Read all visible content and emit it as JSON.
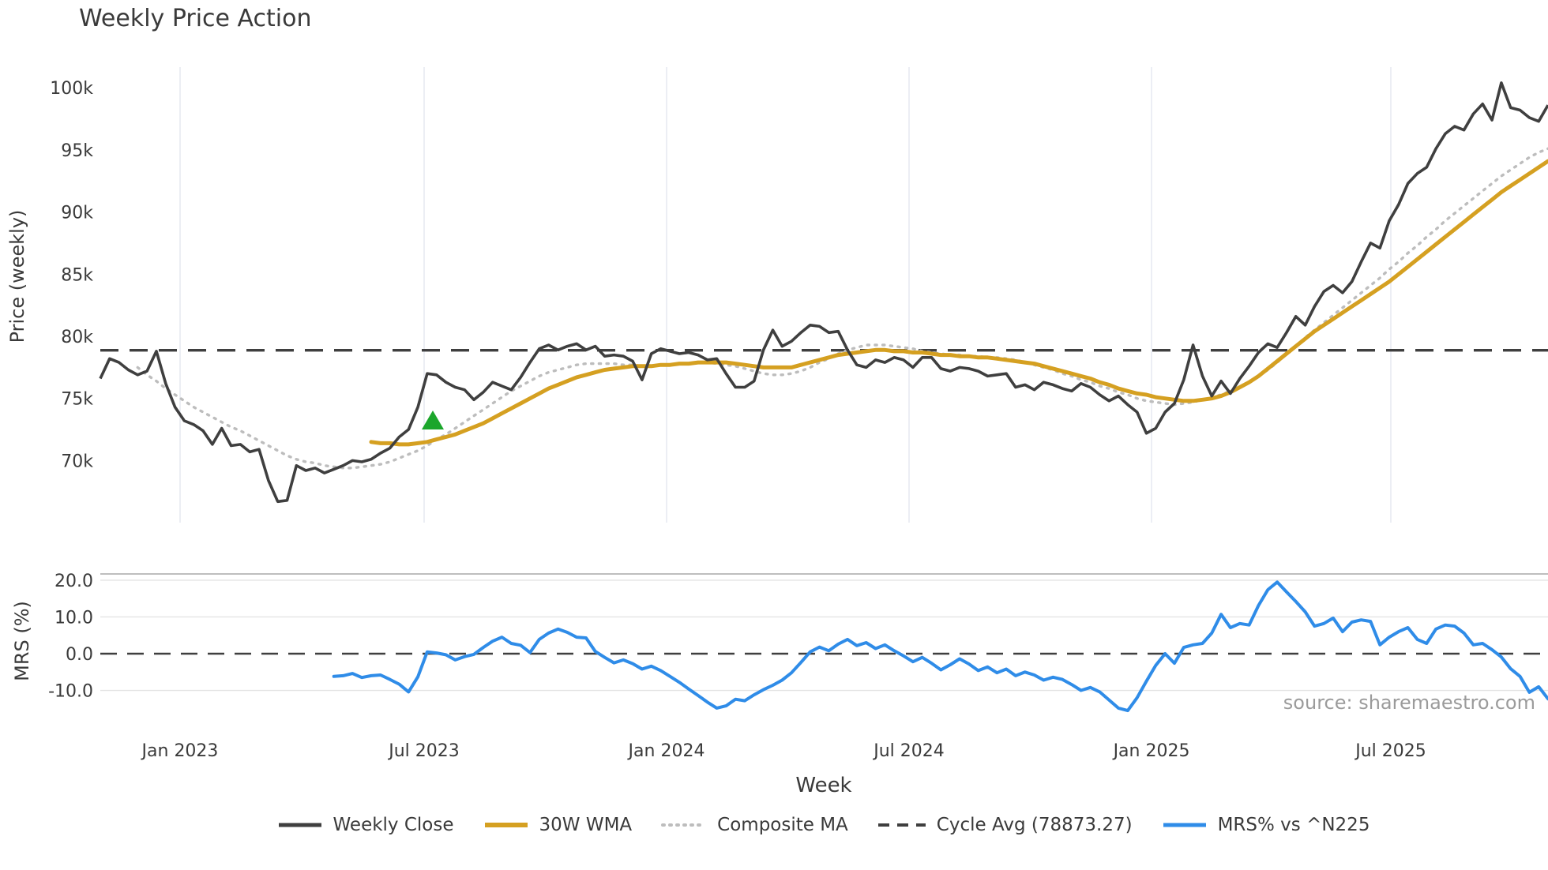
{
  "title": "Weekly Price Action",
  "source": "source: sharemaestro.com",
  "chart_data": {
    "type": "line",
    "title": "Weekly Price Action",
    "xlabel": "Week",
    "x_tick_labels": [
      "Jan 2023",
      "Jul 2023",
      "Jan 2024",
      "Jul 2024",
      "Jan 2025",
      "Jul 2025"
    ],
    "x_is_weekly": true,
    "weeks_total": 156,
    "panels": [
      {
        "name": "price",
        "ylabel": "Price (weekly)",
        "ytick_labels": [
          "100k",
          "95k",
          "90k",
          "85k",
          "80k",
          "75k",
          "70k"
        ],
        "ytick_values_k": [
          100,
          95,
          90,
          85,
          80,
          75,
          70
        ],
        "ylim_k": [
          65.5,
          102.5
        ],
        "grid": "vertical-date-lines"
      },
      {
        "name": "mrs",
        "ylabel": "MRS (%)",
        "ytick_labels": [
          "20.0",
          "10.0",
          "0.0",
          "-10.0"
        ],
        "ytick_values": [
          20,
          10,
          0,
          -10
        ],
        "ylim": [
          -20,
          21.7
        ],
        "grid": "horizontal-lines"
      }
    ],
    "series": [
      {
        "name": "Weekly Close",
        "panel": "price",
        "color": "#3f3f3f",
        "style": "solid",
        "unit": "k",
        "values": [
          76.6,
          78.2,
          77.9,
          77.3,
          76.9,
          77.2,
          78.8,
          76.2,
          74.3,
          73.2,
          72.9,
          72.4,
          71.3,
          72.6,
          71.2,
          71.3,
          70.7,
          70.9,
          68.4,
          66.7,
          66.8,
          69.6,
          69.2,
          69.4,
          69.0,
          69.3,
          69.6,
          70.0,
          69.9,
          70.1,
          70.6,
          71.0,
          71.9,
          72.5,
          74.3,
          77.0,
          76.9,
          76.3,
          75.9,
          75.7,
          74.9,
          75.5,
          76.3,
          76.0,
          75.7,
          76.7,
          77.9,
          79.0,
          79.3,
          78.9,
          79.2,
          79.4,
          78.9,
          79.2,
          78.4,
          78.5,
          78.4,
          78.0,
          76.5,
          78.6,
          79.0,
          78.8,
          78.6,
          78.7,
          78.5,
          78.1,
          78.2,
          77.0,
          75.9,
          75.9,
          76.4,
          78.9,
          80.5,
          79.2,
          79.6,
          80.3,
          80.9,
          80.8,
          80.3,
          80.4,
          78.9,
          77.7,
          77.5,
          78.1,
          77.9,
          78.3,
          78.1,
          77.5,
          78.3,
          78.3,
          77.4,
          77.2,
          77.5,
          77.4,
          77.2,
          76.8,
          76.9,
          77.0,
          75.9,
          76.1,
          75.7,
          76.3,
          76.1,
          75.8,
          75.6,
          76.2,
          75.9,
          75.3,
          74.8,
          75.2,
          74.5,
          73.9,
          72.2,
          72.6,
          73.9,
          74.6,
          76.5,
          79.3,
          76.8,
          75.2,
          76.4,
          75.4,
          76.6,
          77.6,
          78.7,
          79.4,
          79.1,
          80.3,
          81.6,
          80.9,
          82.4,
          83.6,
          84.1,
          83.5,
          84.4,
          86.0,
          87.5,
          87.1,
          89.3,
          90.6,
          92.3,
          93.1,
          93.6,
          95.1,
          96.3,
          96.9,
          96.6,
          97.9,
          98.7,
          97.4,
          100.4,
          98.4,
          98.2,
          97.6,
          97.3,
          98.6
        ]
      },
      {
        "name": "30W WMA",
        "panel": "price",
        "color": "#d5a021",
        "style": "solid",
        "unit": "k",
        "values": [
          null,
          null,
          null,
          null,
          null,
          null,
          null,
          null,
          null,
          null,
          null,
          null,
          null,
          null,
          null,
          null,
          null,
          null,
          null,
          null,
          null,
          null,
          null,
          null,
          null,
          null,
          null,
          null,
          null,
          71.5,
          71.4,
          71.4,
          71.3,
          71.3,
          71.4,
          71.5,
          71.7,
          71.9,
          72.1,
          72.4,
          72.7,
          73.0,
          73.4,
          73.8,
          74.2,
          74.6,
          75.0,
          75.4,
          75.8,
          76.1,
          76.4,
          76.7,
          76.9,
          77.1,
          77.3,
          77.4,
          77.5,
          77.6,
          77.6,
          77.6,
          77.7,
          77.7,
          77.8,
          77.8,
          77.9,
          77.9,
          77.9,
          77.9,
          77.8,
          77.7,
          77.6,
          77.5,
          77.5,
          77.5,
          77.5,
          77.7,
          77.9,
          78.1,
          78.3,
          78.5,
          78.6,
          78.7,
          78.8,
          78.9,
          78.9,
          78.8,
          78.8,
          78.7,
          78.7,
          78.6,
          78.5,
          78.5,
          78.4,
          78.4,
          78.3,
          78.3,
          78.2,
          78.1,
          78.0,
          77.9,
          77.8,
          77.6,
          77.4,
          77.2,
          77.0,
          76.8,
          76.6,
          76.3,
          76.1,
          75.8,
          75.6,
          75.4,
          75.3,
          75.1,
          75.0,
          74.9,
          74.8,
          74.8,
          74.9,
          75.0,
          75.2,
          75.5,
          75.9,
          76.3,
          76.8,
          77.4,
          78.0,
          78.6,
          79.2,
          79.8,
          80.4,
          80.9,
          81.4,
          81.9,
          82.4,
          82.9,
          83.4,
          83.9,
          84.4,
          85.0,
          85.6,
          86.2,
          86.8,
          87.4,
          88.0,
          88.6,
          89.2,
          89.8,
          90.4,
          91.0,
          91.6,
          92.1,
          92.6,
          93.1,
          93.6,
          94.1
        ]
      },
      {
        "name": "Composite MA",
        "panel": "price",
        "color": "#bdbdbd",
        "style": "dotted",
        "unit": "k",
        "values": [
          null,
          null,
          null,
          null,
          77.5,
          76.9,
          76.4,
          75.8,
          75.3,
          74.8,
          74.3,
          73.9,
          73.5,
          73.1,
          72.7,
          72.4,
          72.0,
          71.6,
          71.2,
          70.8,
          70.4,
          70.1,
          69.9,
          69.8,
          69.6,
          69.5,
          69.4,
          69.4,
          69.5,
          69.6,
          69.7,
          69.9,
          70.2,
          70.5,
          70.8,
          71.2,
          71.7,
          72.1,
          72.6,
          73.1,
          73.6,
          74.1,
          74.6,
          75.1,
          75.6,
          76.0,
          76.4,
          76.8,
          77.1,
          77.3,
          77.5,
          77.7,
          77.8,
          77.8,
          77.8,
          77.8,
          77.7,
          77.7,
          77.6,
          77.6,
          77.7,
          77.7,
          77.8,
          77.8,
          77.9,
          77.9,
          77.8,
          77.7,
          77.6,
          77.4,
          77.2,
          77.0,
          76.9,
          76.9,
          77.0,
          77.2,
          77.5,
          77.9,
          78.2,
          78.6,
          78.9,
          79.1,
          79.3,
          79.3,
          79.3,
          79.2,
          79.1,
          79.0,
          78.8,
          78.7,
          78.6,
          78.5,
          78.5,
          78.4,
          78.4,
          78.3,
          78.3,
          78.2,
          78.1,
          77.9,
          77.7,
          77.5,
          77.3,
          77.0,
          76.8,
          76.5,
          76.3,
          76.0,
          75.8,
          75.5,
          75.3,
          75.0,
          74.8,
          74.7,
          74.6,
          74.5,
          74.6,
          74.7,
          74.9,
          75.1,
          75.3,
          75.6,
          75.9,
          76.3,
          76.8,
          77.3,
          77.9,
          78.6,
          79.2,
          79.9,
          80.5,
          81.1,
          81.7,
          82.3,
          82.9,
          83.5,
          84.1,
          84.7,
          85.4,
          86.0,
          86.7,
          87.3,
          88.0,
          88.6,
          89.3,
          89.9,
          90.5,
          91.1,
          91.7,
          92.3,
          92.9,
          93.4,
          93.9,
          94.4,
          94.8,
          95.1
        ]
      },
      {
        "name": "Cycle Avg (78873.27)",
        "panel": "price",
        "color": "#3f3f3f",
        "style": "dashed",
        "unit": "k",
        "constant_value": 78873.27,
        "constant_value_k": 78.87327
      },
      {
        "name": "MRS% vs ^N225",
        "panel": "mrs",
        "color": "#2f8ce8",
        "style": "solid",
        "unit": "%",
        "values": [
          null,
          null,
          null,
          null,
          null,
          null,
          null,
          null,
          null,
          null,
          null,
          null,
          null,
          null,
          null,
          null,
          null,
          null,
          null,
          null,
          null,
          null,
          null,
          null,
          null,
          -6.2,
          -6.0,
          -5.4,
          -6.5,
          -6.0,
          -5.8,
          -7.0,
          -8.3,
          -10.4,
          -6.3,
          0.5,
          0.2,
          -0.3,
          -1.7,
          -0.8,
          -0.2,
          1.7,
          3.4,
          4.5,
          2.8,
          2.3,
          0.3,
          3.9,
          5.6,
          6.7,
          5.8,
          4.5,
          4.3,
          0.6,
          -1.0,
          -2.5,
          -1.7,
          -2.7,
          -4.2,
          -3.4,
          -4.6,
          -6.2,
          -7.8,
          -9.6,
          -11.4,
          -13.2,
          -14.8,
          -14.2,
          -12.4,
          -12.8,
          -11.2,
          -9.8,
          -8.6,
          -7.2,
          -5.2,
          -2.4,
          0.5,
          1.8,
          0.8,
          2.6,
          3.9,
          2.2,
          3.0,
          1.4,
          2.4,
          0.8,
          -0.6,
          -2.2,
          -1.0,
          -2.6,
          -4.4,
          -3.0,
          -1.4,
          -2.8,
          -4.6,
          -3.6,
          -5.2,
          -4.2,
          -6.0,
          -5.0,
          -5.8,
          -7.2,
          -6.4,
          -7.0,
          -8.4,
          -10.0,
          -9.2,
          -10.4,
          -12.6,
          -14.8,
          -15.5,
          -12.0,
          -7.5,
          -3.2,
          0.0,
          -2.6,
          1.7,
          2.4,
          2.8,
          5.6,
          10.7,
          7.1,
          8.2,
          7.8,
          13.1,
          17.4,
          19.5,
          16.8,
          14.2,
          11.4,
          7.5,
          8.2,
          9.7,
          6.0,
          8.6,
          9.2,
          8.8,
          2.4,
          4.5,
          6.0,
          7.1,
          3.9,
          2.8,
          6.7,
          7.8,
          7.5,
          5.6,
          2.4,
          2.8,
          1.1,
          -0.9,
          -4.1,
          -6.2,
          -10.5,
          -9.0,
          -12.3
        ]
      }
    ],
    "marker": {
      "shape": "triangle-up",
      "meaning": "buy-signal-marker",
      "color": "#1ba62b",
      "week_index": 35.6,
      "price_k": 73.2
    },
    "legend_position": "bottom-center",
    "colors": {
      "weekly_close": "#3f3f3f",
      "wma30": "#d5a021",
      "composite_ma": "#bdbdbd",
      "cycle_avg": "#3f3f3f",
      "mrs": "#2f8ce8",
      "signal_green": "#1ba62b",
      "grid_vertical": "#e7eaf2",
      "grid_horizontal": "#e3e3e3",
      "mrs_top_spine": "#a8a8a8",
      "text": "#3a3a3a",
      "source_text": "#9b9b9b",
      "background": "#ffffff"
    }
  }
}
